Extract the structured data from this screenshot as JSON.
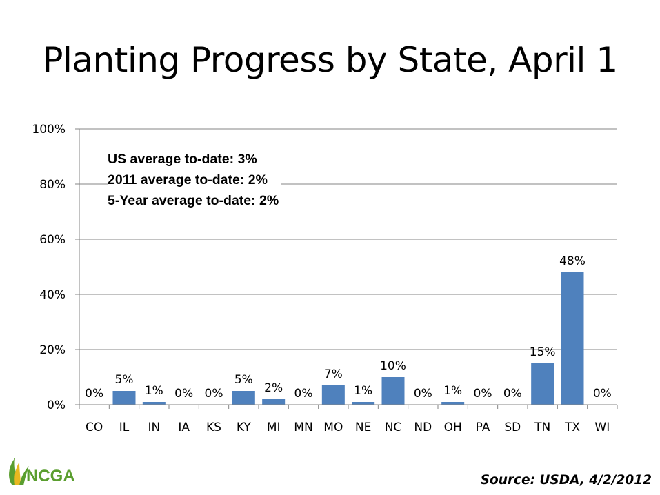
{
  "slide": {
    "title": "Planting Progress by State, April 1",
    "source": "Source: USDA, 4/2/2012",
    "logo_text": "NCGA"
  },
  "annotation": {
    "lines": [
      "US average to-date: 3%",
      "2011 average to-date: 2%",
      "5-Year average to-date: 2%"
    ]
  },
  "chart_data": {
    "type": "bar",
    "title": "",
    "xlabel": "",
    "ylabel": "",
    "categories": [
      "CO",
      "IL",
      "IN",
      "IA",
      "KS",
      "KY",
      "MI",
      "MN",
      "MO",
      "NE",
      "NC",
      "ND",
      "OH",
      "PA",
      "SD",
      "TN",
      "TX",
      "WI"
    ],
    "values": [
      0,
      5,
      1,
      0,
      0,
      5,
      2,
      0,
      7,
      1,
      10,
      0,
      1,
      0,
      0,
      15,
      48,
      0
    ],
    "data_labels": [
      "0%",
      "5%",
      "1%",
      "0%",
      "0%",
      "5%",
      "2%",
      "0%",
      "7%",
      "1%",
      "10%",
      "0%",
      "1%",
      "0%",
      "0%",
      "15%",
      "48%",
      "0%"
    ],
    "ylim": [
      0,
      100
    ],
    "yticks": [
      "0%",
      "20%",
      "40%",
      "60%",
      "80%",
      "100%"
    ],
    "ytick_values": [
      0,
      20,
      40,
      60,
      80,
      100
    ],
    "grid": true,
    "legend": "none",
    "bar_color": "#4F81BD"
  },
  "colors": {
    "bar": "#4F81BD",
    "grid": "#868686",
    "logo_green": "#5A9E2F",
    "logo_yellow": "#E8B820"
  }
}
